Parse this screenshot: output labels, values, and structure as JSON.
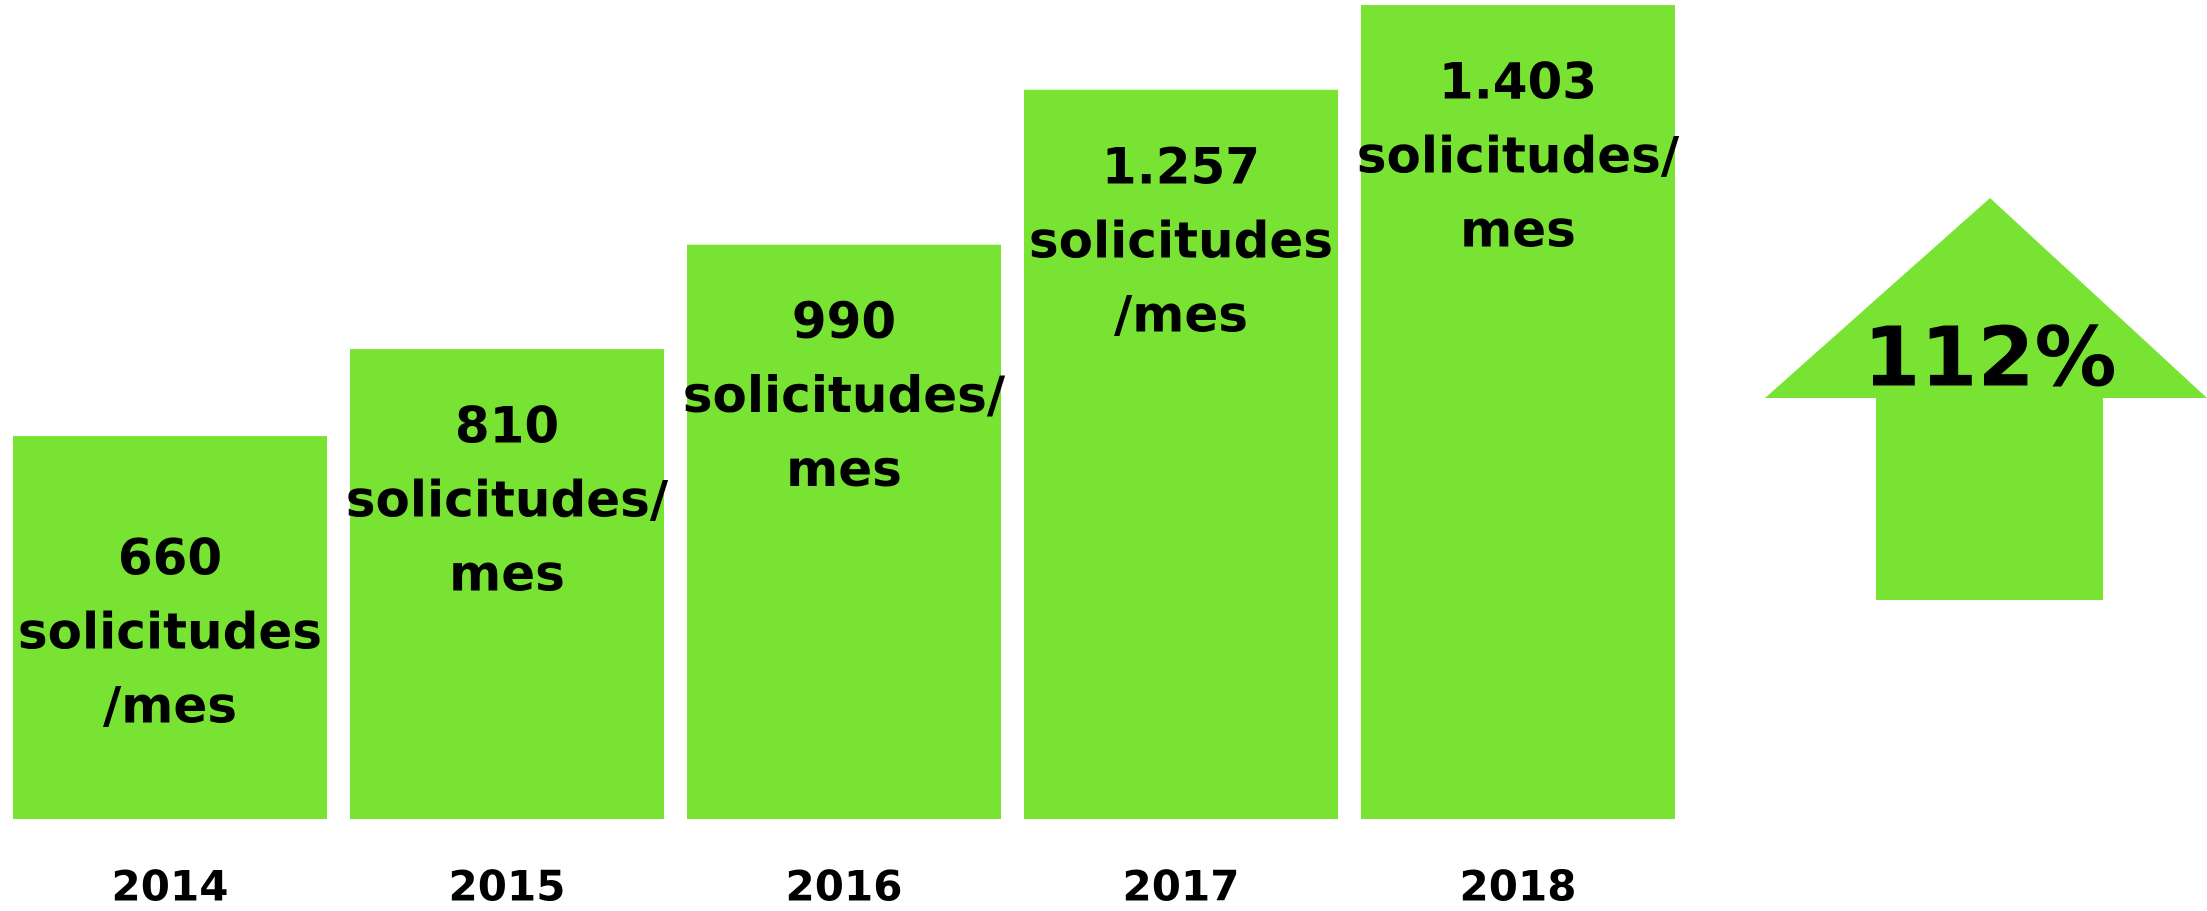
{
  "chart_data": {
    "type": "bar",
    "categories": [
      "2014",
      "2015",
      "2016",
      "2017",
      "2018"
    ],
    "values": [
      660,
      810,
      990,
      1257,
      1403
    ],
    "value_labels": [
      "660",
      "810",
      "990",
      "1.257",
      "1.403"
    ],
    "unit_labels": [
      [
        "solicitudes",
        "/mes"
      ],
      [
        "solicitudes/",
        "mes"
      ],
      [
        "solicitudes/",
        "mes"
      ],
      [
        "solicitudes",
        "/mes"
      ],
      [
        "solicitudes/",
        "mes"
      ]
    ],
    "color": "#79e334",
    "ylim": [
      0,
      1410
    ],
    "annotation": "112%"
  }
}
